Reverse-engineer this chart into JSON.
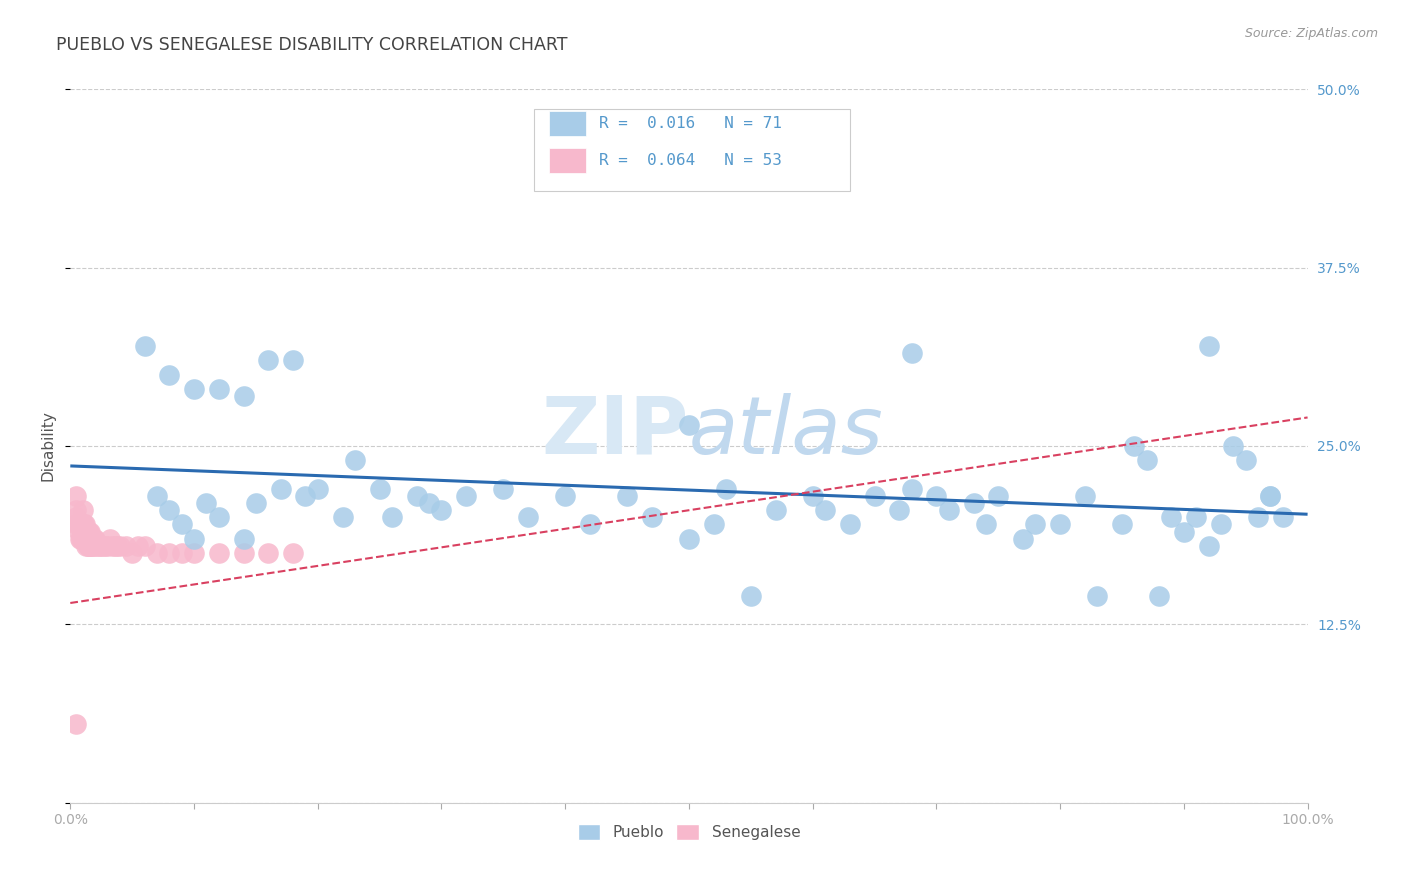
{
  "title": "PUEBLO VS SENEGALESE DISABILITY CORRELATION CHART",
  "source": "Source: ZipAtlas.com",
  "ylabel": "Disability",
  "xlim": [
    0,
    1
  ],
  "ylim": [
    0,
    0.5
  ],
  "yticks": [
    0,
    0.125,
    0.25,
    0.375,
    0.5
  ],
  "pueblo_color": "#a8cce8",
  "senegalese_color": "#f7b8cc",
  "pueblo_line_color": "#2a6ab0",
  "senegalese_line_color": "#d94060",
  "legend_R_pueblo": "R =  0.016",
  "legend_N_pueblo": "N = 71",
  "legend_R_senegalese": "R =  0.064",
  "legend_N_senegalese": "N = 53",
  "pueblo_x": [
    0.07,
    0.08,
    0.09,
    0.1,
    0.11,
    0.12,
    0.14,
    0.15,
    0.17,
    0.19,
    0.2,
    0.22,
    0.23,
    0.25,
    0.26,
    0.28,
    0.29,
    0.3,
    0.32,
    0.35,
    0.37,
    0.4,
    0.42,
    0.45,
    0.47,
    0.5,
    0.52,
    0.53,
    0.55,
    0.57,
    0.6,
    0.61,
    0.63,
    0.65,
    0.67,
    0.68,
    0.7,
    0.71,
    0.73,
    0.74,
    0.75,
    0.77,
    0.78,
    0.8,
    0.82,
    0.83,
    0.85,
    0.86,
    0.87,
    0.88,
    0.89,
    0.9,
    0.91,
    0.92,
    0.93,
    0.94,
    0.95,
    0.96,
    0.97,
    0.98,
    0.06,
    0.08,
    0.1,
    0.12,
    0.14,
    0.16,
    0.18,
    0.5,
    0.68,
    0.92,
    0.97
  ],
  "pueblo_y": [
    0.215,
    0.205,
    0.195,
    0.185,
    0.21,
    0.2,
    0.185,
    0.21,
    0.22,
    0.215,
    0.22,
    0.2,
    0.24,
    0.22,
    0.2,
    0.215,
    0.21,
    0.205,
    0.215,
    0.22,
    0.2,
    0.215,
    0.195,
    0.215,
    0.2,
    0.185,
    0.195,
    0.22,
    0.145,
    0.205,
    0.215,
    0.205,
    0.195,
    0.215,
    0.205,
    0.22,
    0.215,
    0.205,
    0.21,
    0.195,
    0.215,
    0.185,
    0.195,
    0.195,
    0.215,
    0.145,
    0.195,
    0.25,
    0.24,
    0.145,
    0.2,
    0.19,
    0.2,
    0.18,
    0.195,
    0.25,
    0.24,
    0.2,
    0.215,
    0.2,
    0.32,
    0.3,
    0.29,
    0.29,
    0.285,
    0.31,
    0.31,
    0.265,
    0.315,
    0.32,
    0.215
  ],
  "senegalese_x": [
    0.005,
    0.005,
    0.005,
    0.007,
    0.007,
    0.008,
    0.008,
    0.009,
    0.009,
    0.01,
    0.01,
    0.01,
    0.011,
    0.011,
    0.012,
    0.012,
    0.013,
    0.013,
    0.014,
    0.014,
    0.015,
    0.015,
    0.016,
    0.016,
    0.017,
    0.018,
    0.019,
    0.02,
    0.02,
    0.022,
    0.024,
    0.026,
    0.028,
    0.03,
    0.032,
    0.034,
    0.036,
    0.038,
    0.04,
    0.045,
    0.05,
    0.055,
    0.06,
    0.07,
    0.08,
    0.09,
    0.1,
    0.12,
    0.14,
    0.16,
    0.18,
    0.005,
    0.005
  ],
  "senegalese_y": [
    0.195,
    0.2,
    0.205,
    0.19,
    0.195,
    0.185,
    0.195,
    0.185,
    0.195,
    0.185,
    0.195,
    0.205,
    0.185,
    0.195,
    0.185,
    0.195,
    0.18,
    0.19,
    0.18,
    0.19,
    0.18,
    0.19,
    0.18,
    0.19,
    0.18,
    0.18,
    0.185,
    0.18,
    0.185,
    0.18,
    0.18,
    0.18,
    0.18,
    0.18,
    0.185,
    0.18,
    0.18,
    0.18,
    0.18,
    0.18,
    0.175,
    0.18,
    0.18,
    0.175,
    0.175,
    0.175,
    0.175,
    0.175,
    0.175,
    0.175,
    0.175,
    0.055,
    0.215
  ],
  "background_color": "#ffffff",
  "grid_color": "#cccccc",
  "title_color": "#444444",
  "watermark_color": "#d8e8f5",
  "tick_color": "#aaaaaa",
  "right_tick_color": "#5599cc"
}
